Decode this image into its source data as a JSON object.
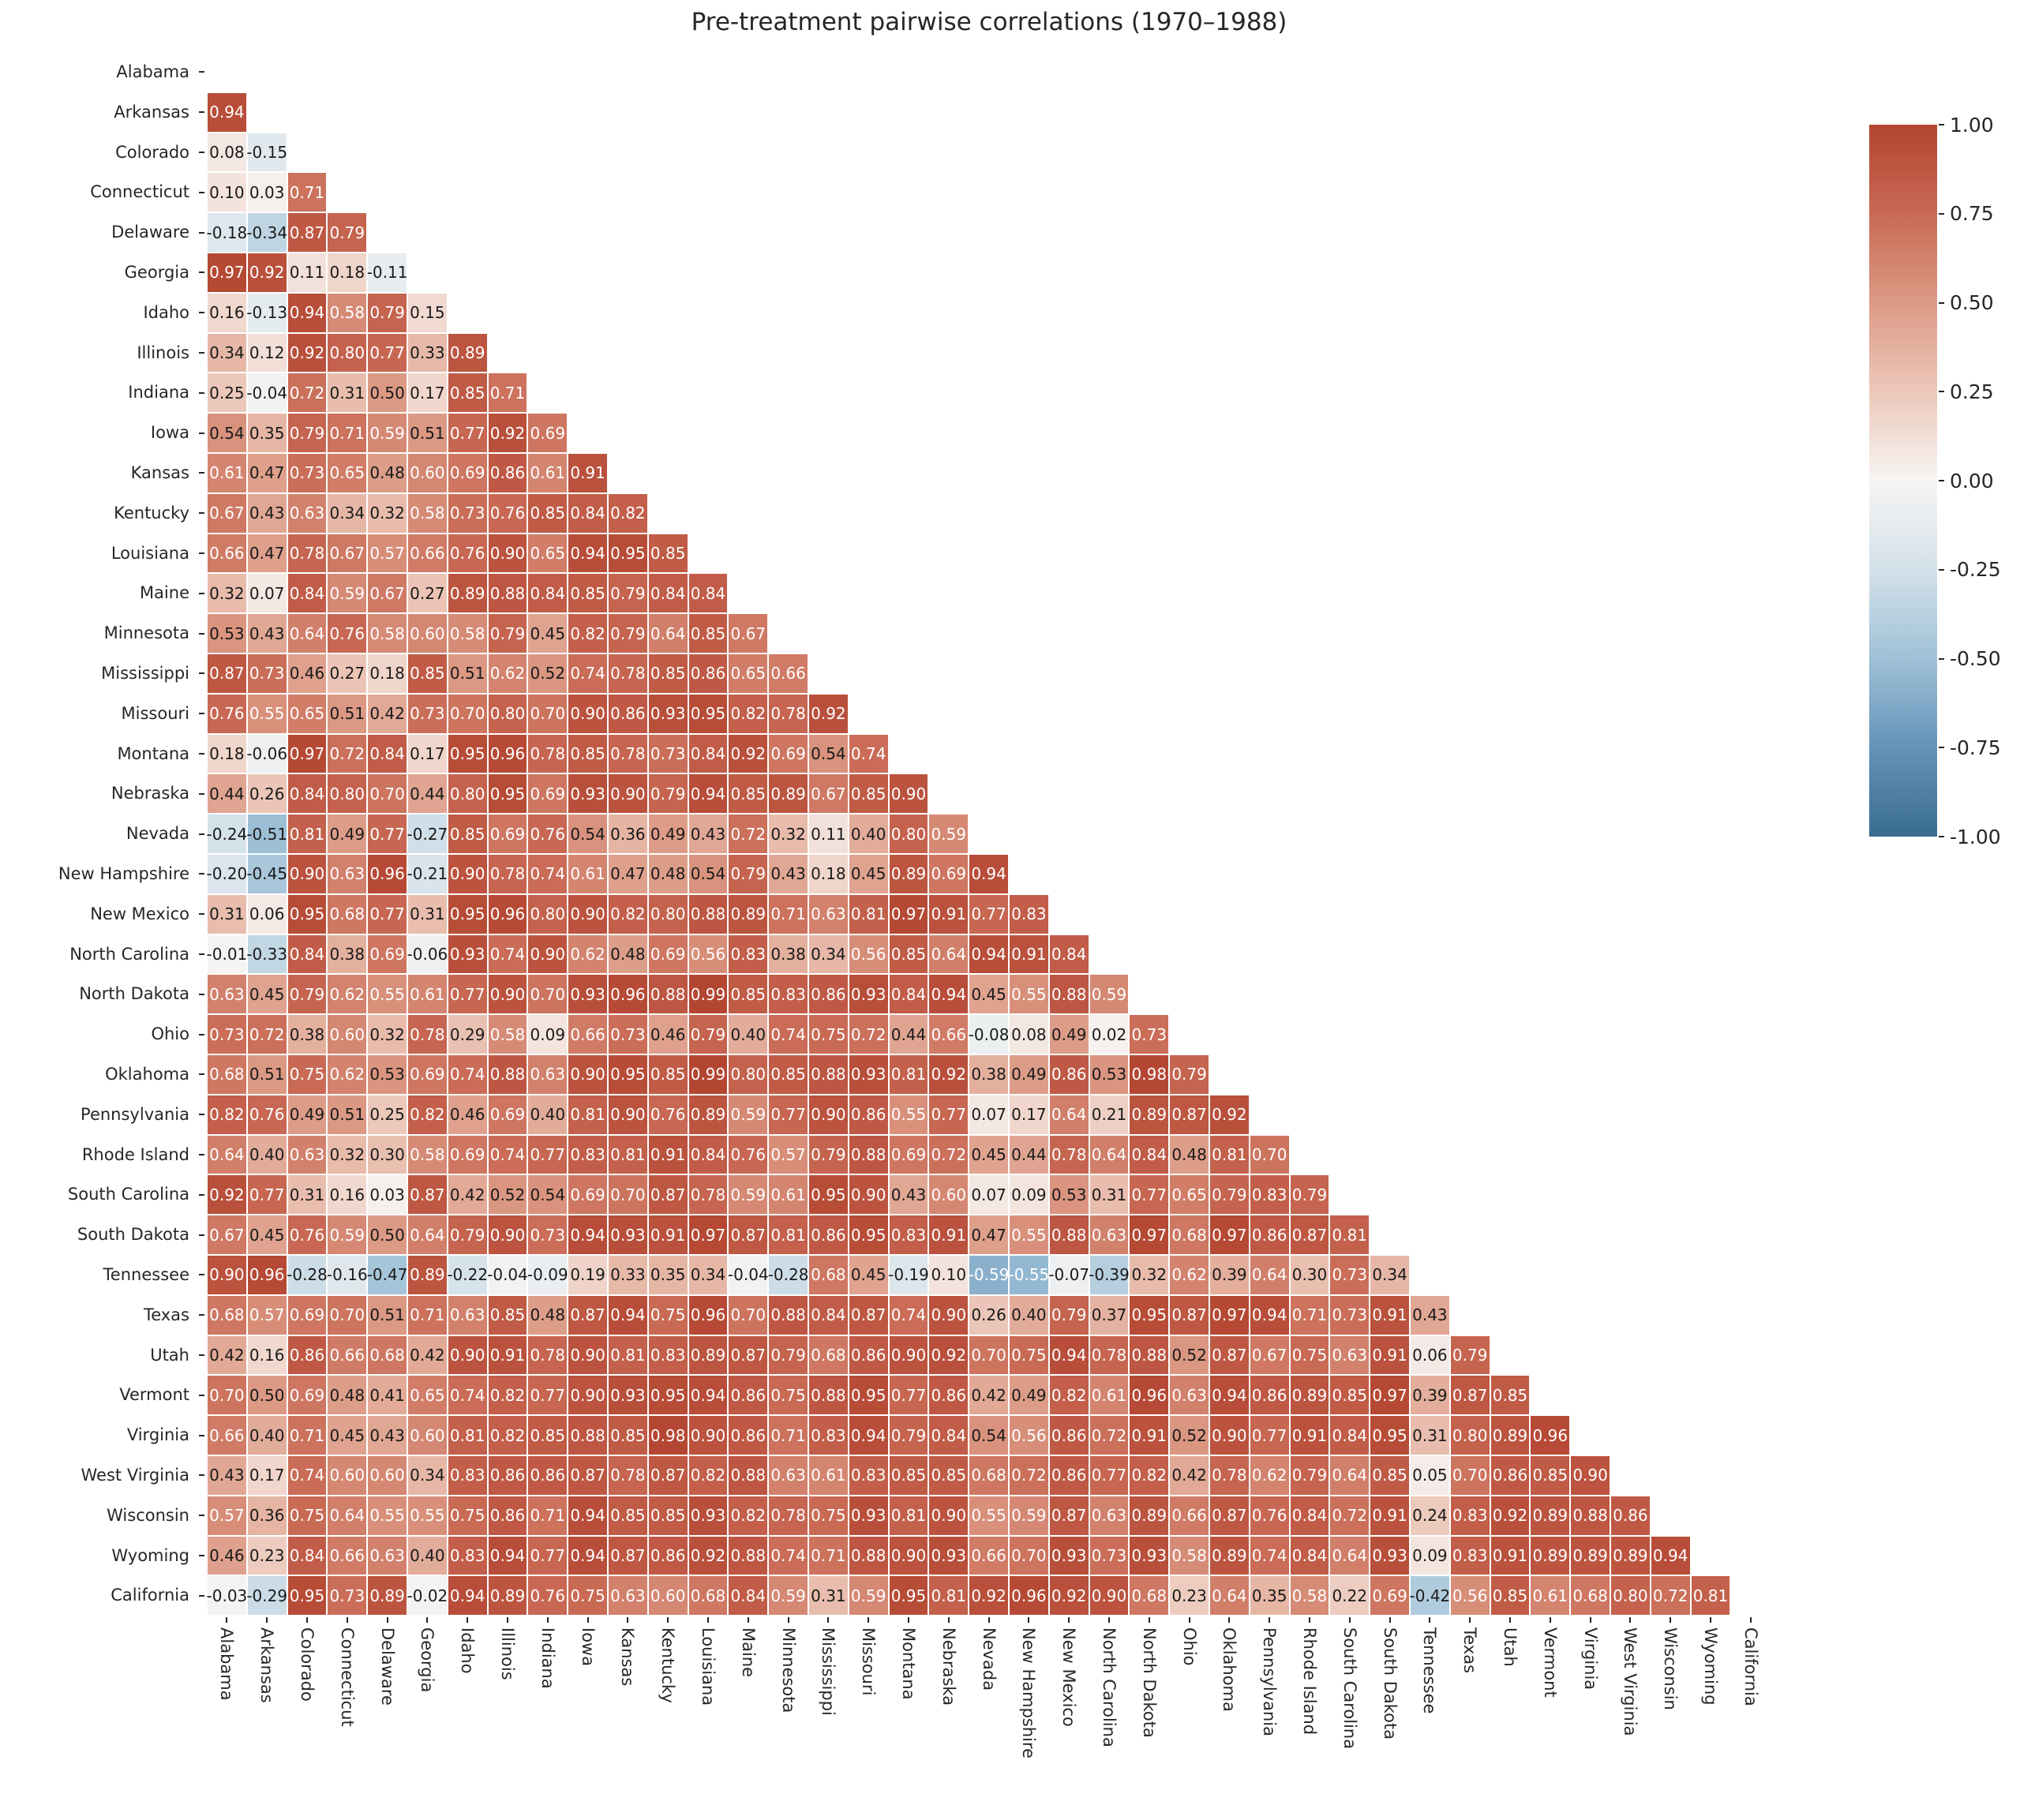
{
  "title": "Pre-treatment pairwise correlations (1970–1988)",
  "chart_data": {
    "type": "heatmap",
    "title": "Pre-treatment pairwise correlations (1970–1988)",
    "shape": "lower-triangle, diagonal and upper triangle masked",
    "vmin": -1.0,
    "vmax": 1.0,
    "colormap": "diverging blue-white-red",
    "colormap_stops": {
      "1.0": "#b24430",
      "0.75": "#c96a55",
      "0.5": "#dc9a85",
      "0.25": "#ecc8ba",
      "0.0": "#f7f5f3",
      "-0.25": "#d3e1ea",
      "-0.5": "#9fc1d7",
      "-0.75": "#6493b9",
      "-1.0": "#3a6b90"
    },
    "annotation_format": "2 decimals",
    "text_color_rule": {
      "white_if_ge": 0.55,
      "white_if_le": -0.53,
      "black": "#1a1a1a",
      "white": "#ffffff"
    },
    "states": [
      "Alabama",
      "Arkansas",
      "Colorado",
      "Connecticut",
      "Delaware",
      "Georgia",
      "Idaho",
      "Illinois",
      "Indiana",
      "Iowa",
      "Kansas",
      "Kentucky",
      "Louisiana",
      "Maine",
      "Minnesota",
      "Mississippi",
      "Missouri",
      "Montana",
      "Nebraska",
      "Nevada",
      "New Hampshire",
      "New Mexico",
      "North Carolina",
      "North Dakota",
      "Ohio",
      "Oklahoma",
      "Pennsylvania",
      "Rhode Island",
      "South Carolina",
      "South Dakota",
      "Tennessee",
      "Texas",
      "Utah",
      "Vermont",
      "Virginia",
      "West Virginia",
      "Wisconsin",
      "Wyoming",
      "California"
    ],
    "rows": [
      {
        "state": "Alabama",
        "values": []
      },
      {
        "state": "Arkansas",
        "values": [
          0.94
        ]
      },
      {
        "state": "Colorado",
        "values": [
          0.08,
          -0.15
        ]
      },
      {
        "state": "Connecticut",
        "values": [
          0.1,
          0.03,
          0.71
        ]
      },
      {
        "state": "Delaware",
        "values": [
          -0.18,
          -0.34,
          0.87,
          0.79
        ]
      },
      {
        "state": "Georgia",
        "values": [
          0.97,
          0.92,
          0.11,
          0.18,
          -0.11
        ]
      },
      {
        "state": "Idaho",
        "values": [
          0.16,
          -0.13,
          0.94,
          0.58,
          0.79,
          0.15
        ]
      },
      {
        "state": "Illinois",
        "values": [
          0.34,
          0.12,
          0.92,
          0.8,
          0.77,
          0.33,
          0.89
        ]
      },
      {
        "state": "Indiana",
        "values": [
          0.25,
          -0.04,
          0.72,
          0.31,
          0.5,
          0.17,
          0.85,
          0.71
        ]
      },
      {
        "state": "Iowa",
        "values": [
          0.54,
          0.35,
          0.79,
          0.71,
          0.59,
          0.51,
          0.77,
          0.92,
          0.69
        ]
      },
      {
        "state": "Kansas",
        "values": [
          0.61,
          0.47,
          0.73,
          0.65,
          0.48,
          0.6,
          0.69,
          0.86,
          0.61,
          0.91
        ]
      },
      {
        "state": "Kentucky",
        "values": [
          0.67,
          0.43,
          0.63,
          0.34,
          0.32,
          0.58,
          0.73,
          0.76,
          0.85,
          0.84,
          0.82
        ]
      },
      {
        "state": "Louisiana",
        "values": [
          0.66,
          0.47,
          0.78,
          0.67,
          0.57,
          0.66,
          0.76,
          0.9,
          0.65,
          0.94,
          0.95,
          0.85
        ]
      },
      {
        "state": "Maine",
        "values": [
          0.32,
          0.07,
          0.84,
          0.59,
          0.67,
          0.27,
          0.89,
          0.88,
          0.84,
          0.85,
          0.79,
          0.84,
          0.84
        ]
      },
      {
        "state": "Minnesota",
        "values": [
          0.53,
          0.43,
          0.64,
          0.76,
          0.58,
          0.6,
          0.58,
          0.79,
          0.45,
          0.82,
          0.79,
          0.64,
          0.85,
          0.67
        ]
      },
      {
        "state": "Mississippi",
        "values": [
          0.87,
          0.73,
          0.46,
          0.27,
          0.18,
          0.85,
          0.51,
          0.62,
          0.52,
          0.74,
          0.78,
          0.85,
          0.86,
          0.65,
          0.66
        ]
      },
      {
        "state": "Missouri",
        "values": [
          0.76,
          0.55,
          0.65,
          0.51,
          0.42,
          0.73,
          0.7,
          0.8,
          0.7,
          0.9,
          0.86,
          0.93,
          0.95,
          0.82,
          0.78,
          0.92
        ]
      },
      {
        "state": "Montana",
        "values": [
          0.18,
          -0.06,
          0.97,
          0.72,
          0.84,
          0.17,
          0.95,
          0.96,
          0.78,
          0.85,
          0.78,
          0.73,
          0.84,
          0.92,
          0.69,
          0.54,
          0.74
        ]
      },
      {
        "state": "Nebraska",
        "values": [
          0.44,
          0.26,
          0.84,
          0.8,
          0.7,
          0.44,
          0.8,
          0.95,
          0.69,
          0.93,
          0.9,
          0.79,
          0.94,
          0.85,
          0.89,
          0.67,
          0.85,
          0.9
        ]
      },
      {
        "state": "Nevada",
        "values": [
          -0.24,
          -0.51,
          0.81,
          0.49,
          0.77,
          -0.27,
          0.85,
          0.69,
          0.76,
          0.54,
          0.36,
          0.49,
          0.43,
          0.72,
          0.32,
          0.11,
          0.4,
          0.8,
          0.59
        ]
      },
      {
        "state": "New Hampshire",
        "values": [
          -0.2,
          -0.45,
          0.9,
          0.63,
          0.96,
          -0.21,
          0.9,
          0.78,
          0.74,
          0.61,
          0.47,
          0.48,
          0.54,
          0.79,
          0.43,
          0.18,
          0.45,
          0.89,
          0.69,
          0.94
        ]
      },
      {
        "state": "New Mexico",
        "values": [
          0.31,
          0.06,
          0.95,
          0.68,
          0.77,
          0.31,
          0.95,
          0.96,
          0.8,
          0.9,
          0.82,
          0.8,
          0.88,
          0.89,
          0.71,
          0.63,
          0.81,
          0.97,
          0.91,
          0.77,
          0.83
        ]
      },
      {
        "state": "North Carolina",
        "values": [
          -0.01,
          -0.33,
          0.84,
          0.38,
          0.69,
          -0.06,
          0.93,
          0.74,
          0.9,
          0.62,
          0.48,
          0.69,
          0.56,
          0.83,
          0.38,
          0.34,
          0.56,
          0.85,
          0.64,
          0.94,
          0.91,
          0.84
        ]
      },
      {
        "state": "North Dakota",
        "values": [
          0.63,
          0.45,
          0.79,
          0.62,
          0.55,
          0.61,
          0.77,
          0.9,
          0.7,
          0.93,
          0.96,
          0.88,
          0.99,
          0.85,
          0.83,
          0.86,
          0.93,
          0.84,
          0.94,
          0.45,
          0.55,
          0.88,
          0.59
        ]
      },
      {
        "state": "Ohio",
        "values": [
          0.73,
          0.72,
          0.38,
          0.6,
          0.32,
          0.78,
          0.29,
          0.58,
          0.09,
          0.66,
          0.73,
          0.46,
          0.79,
          0.4,
          0.74,
          0.75,
          0.72,
          0.44,
          0.66,
          -0.08,
          0.08,
          0.49,
          0.02,
          0.73
        ]
      },
      {
        "state": "Oklahoma",
        "values": [
          0.68,
          0.51,
          0.75,
          0.62,
          0.53,
          0.69,
          0.74,
          0.88,
          0.63,
          0.9,
          0.95,
          0.85,
          0.99,
          0.8,
          0.85,
          0.88,
          0.93,
          0.81,
          0.92,
          0.38,
          0.49,
          0.86,
          0.53,
          0.98,
          0.79
        ]
      },
      {
        "state": "Pennsylvania",
        "values": [
          0.82,
          0.76,
          0.49,
          0.51,
          0.25,
          0.82,
          0.46,
          0.69,
          0.4,
          0.81,
          0.9,
          0.76,
          0.89,
          0.59,
          0.77,
          0.9,
          0.86,
          0.55,
          0.77,
          0.07,
          0.17,
          0.64,
          0.21,
          0.89,
          0.87,
          0.92
        ]
      },
      {
        "state": "Rhode Island",
        "values": [
          0.64,
          0.4,
          0.63,
          0.32,
          0.3,
          0.58,
          0.69,
          0.74,
          0.77,
          0.83,
          0.81,
          0.91,
          0.84,
          0.76,
          0.57,
          0.79,
          0.88,
          0.69,
          0.72,
          0.45,
          0.44,
          0.78,
          0.64,
          0.84,
          0.48,
          0.81,
          0.7
        ]
      },
      {
        "state": "South Carolina",
        "values": [
          0.92,
          0.77,
          0.31,
          0.16,
          0.03,
          0.87,
          0.42,
          0.52,
          0.54,
          0.69,
          0.7,
          0.87,
          0.78,
          0.59,
          0.61,
          0.95,
          0.9,
          0.43,
          0.6,
          0.07,
          0.09,
          0.53,
          0.31,
          0.77,
          0.65,
          0.79,
          0.83,
          0.79
        ]
      },
      {
        "state": "South Dakota",
        "values": [
          0.67,
          0.45,
          0.76,
          0.59,
          0.5,
          0.64,
          0.79,
          0.9,
          0.73,
          0.94,
          0.93,
          0.91,
          0.97,
          0.87,
          0.81,
          0.86,
          0.95,
          0.83,
          0.91,
          0.47,
          0.55,
          0.88,
          0.63,
          0.97,
          0.68,
          0.97,
          0.86,
          0.87,
          0.81
        ]
      },
      {
        "state": "Tennessee",
        "values": [
          0.9,
          0.96,
          -0.28,
          -0.16,
          -0.47,
          0.89,
          -0.22,
          -0.04,
          -0.09,
          0.19,
          0.33,
          0.35,
          0.34,
          -0.04,
          -0.28,
          0.68,
          0.45,
          -0.19,
          0.1,
          -0.59,
          -0.55,
          -0.07,
          -0.39,
          0.32,
          0.62,
          0.39,
          0.64,
          0.3,
          0.73,
          0.34
        ]
      },
      {
        "state": "Texas",
        "values": [
          0.68,
          0.57,
          0.69,
          0.7,
          0.51,
          0.71,
          0.63,
          0.85,
          0.48,
          0.87,
          0.94,
          0.75,
          0.96,
          0.7,
          0.88,
          0.84,
          0.87,
          0.74,
          0.9,
          0.26,
          0.4,
          0.79,
          0.37,
          0.95,
          0.87,
          0.97,
          0.94,
          0.71,
          0.73,
          0.91,
          0.43
        ]
      },
      {
        "state": "Utah",
        "values": [
          0.42,
          0.16,
          0.86,
          0.66,
          0.68,
          0.42,
          0.9,
          0.91,
          0.78,
          0.9,
          0.81,
          0.83,
          0.89,
          0.87,
          0.79,
          0.68,
          0.86,
          0.9,
          0.92,
          0.7,
          0.75,
          0.94,
          0.78,
          0.88,
          0.52,
          0.87,
          0.67,
          0.75,
          0.63,
          0.91,
          0.06,
          0.79
        ]
      },
      {
        "state": "Vermont",
        "values": [
          0.7,
          0.5,
          0.69,
          0.48,
          0.41,
          0.65,
          0.74,
          0.82,
          0.77,
          0.9,
          0.93,
          0.95,
          0.94,
          0.86,
          0.75,
          0.88,
          0.95,
          0.77,
          0.86,
          0.42,
          0.49,
          0.82,
          0.61,
          0.96,
          0.63,
          0.94,
          0.86,
          0.89,
          0.85,
          0.97,
          0.39,
          0.87,
          0.85
        ]
      },
      {
        "state": "Virginia",
        "values": [
          0.66,
          0.4,
          0.71,
          0.45,
          0.43,
          0.6,
          0.81,
          0.82,
          0.85,
          0.88,
          0.85,
          0.98,
          0.9,
          0.86,
          0.71,
          0.83,
          0.94,
          0.79,
          0.84,
          0.54,
          0.56,
          0.86,
          0.72,
          0.91,
          0.52,
          0.9,
          0.77,
          0.91,
          0.84,
          0.95,
          0.31,
          0.8,
          0.89,
          0.96
        ]
      },
      {
        "state": "West Virginia",
        "values": [
          0.43,
          0.17,
          0.74,
          0.6,
          0.6,
          0.34,
          0.83,
          0.86,
          0.86,
          0.87,
          0.78,
          0.87,
          0.82,
          0.88,
          0.63,
          0.61,
          0.83,
          0.85,
          0.85,
          0.68,
          0.72,
          0.86,
          0.77,
          0.82,
          0.42,
          0.78,
          0.62,
          0.79,
          0.64,
          0.85,
          0.05,
          0.7,
          0.86,
          0.85,
          0.9
        ]
      },
      {
        "state": "Wisconsin",
        "values": [
          0.57,
          0.36,
          0.75,
          0.64,
          0.55,
          0.55,
          0.75,
          0.86,
          0.71,
          0.94,
          0.85,
          0.85,
          0.93,
          0.82,
          0.78,
          0.75,
          0.93,
          0.81,
          0.9,
          0.55,
          0.59,
          0.87,
          0.63,
          0.89,
          0.66,
          0.87,
          0.76,
          0.84,
          0.72,
          0.91,
          0.24,
          0.83,
          0.92,
          0.89,
          0.88,
          0.86
        ]
      },
      {
        "state": "Wyoming",
        "values": [
          0.46,
          0.23,
          0.84,
          0.66,
          0.63,
          0.4,
          0.83,
          0.94,
          0.77,
          0.94,
          0.87,
          0.86,
          0.92,
          0.88,
          0.74,
          0.71,
          0.88,
          0.9,
          0.93,
          0.66,
          0.7,
          0.93,
          0.73,
          0.93,
          0.58,
          0.89,
          0.74,
          0.84,
          0.64,
          0.93,
          0.09,
          0.83,
          0.91,
          0.89,
          0.89,
          0.89,
          0.94
        ]
      },
      {
        "state": "California",
        "values": [
          -0.03,
          -0.29,
          0.95,
          0.73,
          0.89,
          -0.02,
          0.94,
          0.89,
          0.76,
          0.75,
          0.63,
          0.6,
          0.68,
          0.84,
          0.59,
          0.31,
          0.59,
          0.95,
          0.81,
          0.92,
          0.96,
          0.92,
          0.9,
          0.68,
          0.23,
          0.64,
          0.35,
          0.58,
          0.22,
          0.69,
          -0.42,
          0.56,
          0.85,
          0.61,
          0.68,
          0.8,
          0.72,
          0.81
        ]
      }
    ],
    "colorbar": {
      "ticks": [
        "1.00",
        "0.75",
        "0.50",
        "0.25",
        "0.00",
        "-0.25",
        "-0.50",
        "-0.75",
        "-1.00"
      ],
      "tick_values": [
        1.0,
        0.75,
        0.5,
        0.25,
        0.0,
        -0.25,
        -0.5,
        -0.75,
        -1.0
      ],
      "position": "right"
    },
    "grid": false,
    "legend_position": "none"
  },
  "layout_note_values_visible_only": true
}
